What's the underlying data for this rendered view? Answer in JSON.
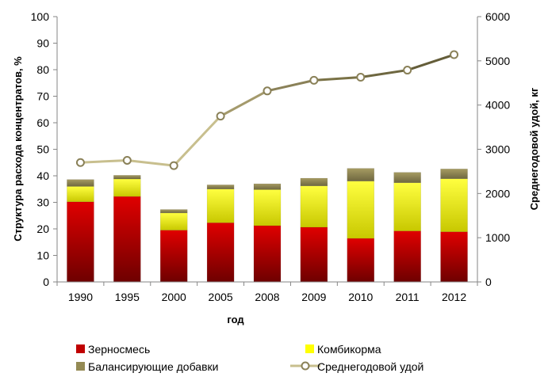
{
  "chart_data": {
    "type": "bar",
    "categories": [
      "1990",
      "1995",
      "2000",
      "2005",
      "2008",
      "2009",
      "2010",
      "2011",
      "2012"
    ],
    "series": [
      {
        "name": "Зерносмесь",
        "type": "stacked-bar",
        "axis": "left",
        "color": "#c00000",
        "values": [
          30.2,
          32.2,
          19.5,
          22.3,
          21.2,
          20.6,
          16.4,
          19.2,
          18.9
        ]
      },
      {
        "name": "Комбикорма",
        "type": "stacked-bar",
        "axis": "left",
        "color": "#ffff00",
        "values": [
          5.8,
          6.6,
          6.5,
          12.7,
          13.6,
          15.6,
          21.6,
          18.2,
          20.0
        ]
      },
      {
        "name": "Балансирующие добавки",
        "type": "stacked-bar",
        "axis": "left",
        "color": "#948a54",
        "values": [
          2.6,
          1.4,
          1.3,
          1.6,
          2.2,
          2.9,
          4.8,
          3.9,
          3.7
        ]
      },
      {
        "name": "Среднегодовой удой",
        "type": "line",
        "axis": "right",
        "color": "#7a7246",
        "values": [
          2700,
          2750,
          2630,
          3750,
          4320,
          4560,
          4630,
          4790,
          5140
        ]
      }
    ],
    "xlabel": "год",
    "ylabel": "Структура расхода концентратов, %",
    "y2label": "Среднегодовой удой, кг",
    "ylim": [
      0,
      100
    ],
    "y2lim": [
      0,
      6000
    ],
    "yticks": [
      "0",
      "10",
      "20",
      "30",
      "40",
      "50",
      "60",
      "70",
      "80",
      "90",
      "100"
    ],
    "y2ticks": [
      "0",
      "1000",
      "2000",
      "3000",
      "4000",
      "5000",
      "6000"
    ],
    "grid": false,
    "legend_position": "bottom"
  }
}
